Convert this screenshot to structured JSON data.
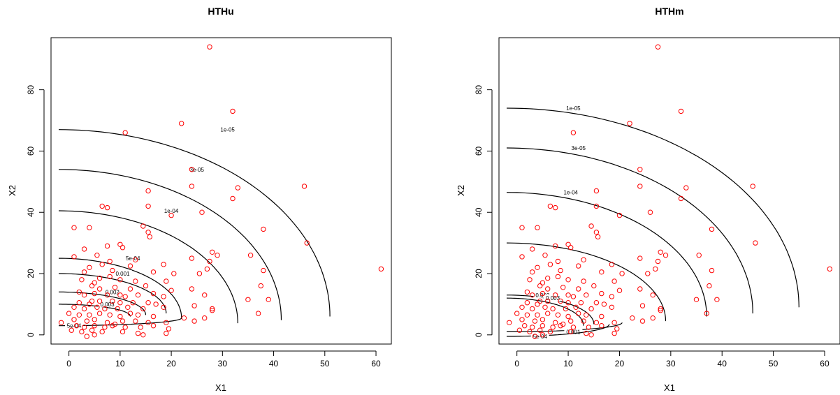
{
  "chart_data": [
    {
      "type": "scatter",
      "title": "HTHu",
      "xlabel": "X1",
      "ylabel": "X2",
      "xticks": [
        0,
        10,
        20,
        30,
        40,
        50,
        60
      ],
      "yticks": [
        0,
        20,
        40,
        60,
        80
      ],
      "xlim": [
        -3.5,
        63
      ],
      "ylim": [
        -3,
        97
      ],
      "grid": false,
      "point_color": "#ff0000",
      "contour_color": "#000000",
      "contours": [
        {
          "level": "1e-05",
          "hx": 53,
          "hy": 6,
          "label_at": [
            31,
            67
          ]
        },
        {
          "level": "3e-05",
          "hx": 43.5,
          "hy": 4.8,
          "label_at": [
            25,
            54
          ]
        },
        {
          "level": "1e-04",
          "hx": 35,
          "hy": 3.8,
          "label_at": [
            20,
            40.5
          ]
        },
        {
          "level": "5e-04",
          "hx": 24,
          "hy": 5.5,
          "label_at": [
            12.5,
            25
          ]
        },
        {
          "level": "0.001",
          "hx": 21,
          "hy": 7,
          "label_at": [
            10.5,
            20
          ]
        },
        {
          "level": "0.002",
          "hx": 17,
          "hy": 6.5,
          "label_at": [
            8.5,
            14
          ]
        },
        {
          "level": "0.003",
          "hx": 14,
          "hy": 6,
          "label_at": [
            7.5,
            10
          ]
        },
        {
          "level": "5e-04",
          "hx": 24,
          "hy": 5.5,
          "label_at": [
            1,
            3
          ]
        }
      ]
    },
    {
      "type": "scatter",
      "title": "HTHm",
      "xlabel": "X1",
      "ylabel": "X2",
      "xticks": [
        0,
        10,
        20,
        30,
        40,
        50,
        60
      ],
      "yticks": [
        0,
        20,
        40,
        60,
        80
      ],
      "xlim": [
        -3.5,
        63
      ],
      "ylim": [
        -3,
        97
      ],
      "grid": false,
      "point_color": "#ff0000",
      "contour_color": "#000000",
      "contours": [
        {
          "level": "1e-05",
          "hx": 57,
          "hy": 9,
          "label_at": [
            11,
            74
          ]
        },
        {
          "level": "3e-05",
          "hx": 48,
          "hy": 7,
          "label_at": [
            12,
            61
          ]
        },
        {
          "level": "1e-04",
          "hx": 39,
          "hy": 6,
          "label_at": [
            10.5,
            46.5
          ]
        },
        {
          "level": "",
          "hx": 31,
          "hy": 4.5,
          "label_at": [
            -1,
            30
          ]
        },
        {
          "level": "0.001",
          "hx": 22.5,
          "hy": 4,
          "label_at": [
            11,
            1
          ]
        },
        {
          "level": "5e-04",
          "hx": 20,
          "hy": 3.5,
          "label_at": [
            4.5,
            -0.5
          ]
        },
        {
          "level": "0.002",
          "hx": 17,
          "hy": 3.5,
          "label_at": [
            5,
            13
          ]
        },
        {
          "level": "0.003",
          "hx": 15,
          "hy": 3,
          "label_at": [
            7,
            12
          ]
        }
      ]
    }
  ],
  "points": [
    [
      27.5,
      94
    ],
    [
      32,
      73
    ],
    [
      11,
      66
    ],
    [
      22,
      69
    ],
    [
      24,
      54
    ],
    [
      24,
      48.5
    ],
    [
      33,
      48
    ],
    [
      46,
      48.5
    ],
    [
      15.5,
      47
    ],
    [
      32,
      44.5
    ],
    [
      26,
      40
    ],
    [
      6.5,
      42
    ],
    [
      7.5,
      41.5
    ],
    [
      15.5,
      42
    ],
    [
      20,
      39
    ],
    [
      1,
      35
    ],
    [
      4,
      35
    ],
    [
      38,
      34.5
    ],
    [
      14.5,
      35.5
    ],
    [
      15.5,
      33.5
    ],
    [
      15.8,
      32
    ],
    [
      46.5,
      30
    ],
    [
      10,
      29.5
    ],
    [
      7.5,
      29
    ],
    [
      3,
      28
    ],
    [
      10.5,
      28.5
    ],
    [
      28,
      27
    ],
    [
      29,
      26
    ],
    [
      35.5,
      26
    ],
    [
      1,
      25.5
    ],
    [
      5.5,
      26
    ],
    [
      8,
      24
    ],
    [
      13,
      24.5
    ],
    [
      24,
      25
    ],
    [
      27.5,
      24
    ],
    [
      6.5,
      23
    ],
    [
      4,
      22
    ],
    [
      12,
      22.5
    ],
    [
      18.5,
      23
    ],
    [
      3,
      20.5
    ],
    [
      8.5,
      21
    ],
    [
      16.5,
      20.5
    ],
    [
      20.5,
      20
    ],
    [
      25.5,
      20
    ],
    [
      38,
      21
    ],
    [
      61,
      21.5
    ],
    [
      27,
      21.5
    ],
    [
      2.5,
      18
    ],
    [
      6,
      18.5
    ],
    [
      10,
      18
    ],
    [
      13,
      17.5
    ],
    [
      19,
      17.5
    ],
    [
      4.5,
      16
    ],
    [
      9,
      15.5
    ],
    [
      12,
      15
    ],
    [
      15,
      16
    ],
    [
      16.5,
      13.5
    ],
    [
      20,
      14.5
    ],
    [
      24,
      15
    ],
    [
      37.5,
      16
    ],
    [
      5,
      13.5
    ],
    [
      7.5,
      13
    ],
    [
      3,
      13
    ],
    [
      11,
      12.5
    ],
    [
      13.5,
      13
    ],
    [
      18.5,
      12.5
    ],
    [
      2,
      10.5
    ],
    [
      4.5,
      11
    ],
    [
      6,
      11
    ],
    [
      8.5,
      11
    ],
    [
      10,
      10.5
    ],
    [
      12.5,
      10.5
    ],
    [
      15.5,
      10.5
    ],
    [
      17,
      10
    ],
    [
      26.5,
      13
    ],
    [
      35,
      11.5
    ],
    [
      39,
      11.5
    ],
    [
      1,
      9
    ],
    [
      3,
      8.5
    ],
    [
      5.5,
      9
    ],
    [
      7,
      8.5
    ],
    [
      9.5,
      8.5
    ],
    [
      11.5,
      9
    ],
    [
      14.5,
      8.5
    ],
    [
      18.5,
      9
    ],
    [
      24.5,
      9.5
    ],
    [
      28,
      8.5
    ],
    [
      37,
      7
    ],
    [
      0,
      7
    ],
    [
      2,
      6.5
    ],
    [
      4,
      6.5
    ],
    [
      6,
      7
    ],
    [
      8,
      6.5
    ],
    [
      10,
      6
    ],
    [
      13.5,
      6.5
    ],
    [
      16.5,
      6
    ],
    [
      22.5,
      5.5
    ],
    [
      26.5,
      5.5
    ],
    [
      1,
      5
    ],
    [
      3.5,
      4.5
    ],
    [
      5,
      5
    ],
    [
      7.5,
      4
    ],
    [
      10.5,
      4.5
    ],
    [
      13,
      4.5
    ],
    [
      15.5,
      4
    ],
    [
      19,
      4
    ],
    [
      24.5,
      4.5
    ],
    [
      -1.5,
      4
    ],
    [
      1.5,
      3
    ],
    [
      3,
      2.5
    ],
    [
      5,
      3
    ],
    [
      7,
      2.5
    ],
    [
      8.5,
      3
    ],
    [
      11,
      2.5
    ],
    [
      14,
      2.5
    ],
    [
      16.5,
      3
    ],
    [
      19.5,
      2
    ],
    [
      0.5,
      1.5
    ],
    [
      2.5,
      1
    ],
    [
      4.5,
      1.5
    ],
    [
      6.5,
      1
    ],
    [
      10.5,
      1
    ],
    [
      13.5,
      0.5
    ],
    [
      3.5,
      -0.5
    ],
    [
      5,
      0
    ],
    [
      14.5,
      0
    ],
    [
      19,
      0.5
    ],
    [
      28,
      8
    ],
    [
      9,
      3.5
    ],
    [
      6,
      15
    ],
    [
      4,
      10
    ],
    [
      8,
      19
    ],
    [
      5,
      17
    ],
    [
      2,
      14
    ],
    [
      10,
      13
    ],
    [
      12,
      7
    ]
  ]
}
